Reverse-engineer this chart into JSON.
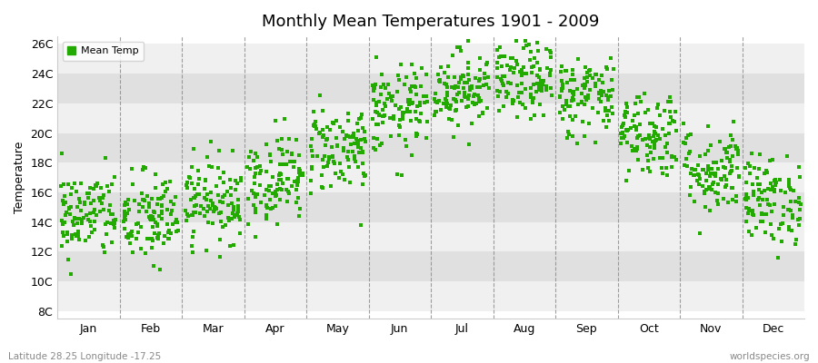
{
  "title": "Monthly Mean Temperatures 1901 - 2009",
  "ylabel": "Temperature",
  "xlabel_labels": [
    "Jan",
    "Feb",
    "Mar",
    "Apr",
    "May",
    "Jun",
    "Jul",
    "Aug",
    "Sep",
    "Oct",
    "Nov",
    "Dec"
  ],
  "ytick_labels": [
    "8C",
    "10C",
    "12C",
    "14C",
    "16C",
    "18C",
    "20C",
    "22C",
    "24C",
    "26C"
  ],
  "ytick_values": [
    8,
    10,
    12,
    14,
    16,
    18,
    20,
    22,
    24,
    26
  ],
  "ylim": [
    7.5,
    26.5
  ],
  "dot_color": "#22aa00",
  "dot_size": 7,
  "legend_label": "Mean Temp",
  "subtitle_left": "Latitude 28.25 Longitude -17.25",
  "subtitle_right": "worldspecies.org",
  "background_color": "#ffffff",
  "plot_bg_color": "#ffffff",
  "band_color_light": "#f0f0f0",
  "band_color_dark": "#e0e0e0",
  "n_years": 109,
  "monthly_means": [
    14.5,
    14.2,
    15.5,
    17.0,
    19.0,
    21.5,
    23.0,
    23.5,
    22.5,
    20.0,
    17.5,
    15.5
  ],
  "monthly_stds": [
    1.5,
    1.6,
    1.4,
    1.5,
    1.5,
    1.5,
    1.3,
    1.3,
    1.4,
    1.5,
    1.5,
    1.5
  ],
  "seed": 42
}
